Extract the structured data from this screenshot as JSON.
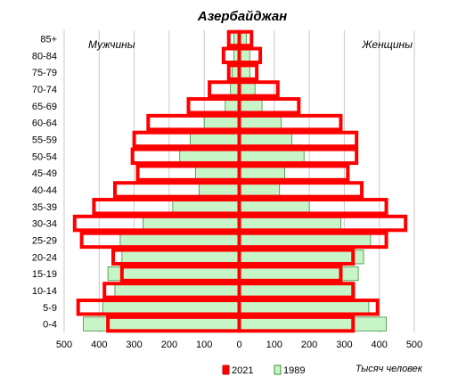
{
  "chart_data": {
    "type": "bar",
    "orientation": "horizontal-pyramid",
    "title": "Азербайджан",
    "left_label": "Мужчины",
    "right_label": "Женщины",
    "unit_label": "Тысяч человек",
    "categories": [
      "0-4",
      "5-9",
      "10-14",
      "15-19",
      "20-24",
      "25-29",
      "30-34",
      "35-39",
      "40-44",
      "45-49",
      "50-54",
      "55-59",
      "60-64",
      "65-69",
      "70-74",
      "75-79",
      "80-84",
      "85+"
    ],
    "xlim": [
      -500,
      500
    ],
    "x_ticks": [
      -500,
      -400,
      -300,
      -200,
      -100,
      0,
      100,
      200,
      300,
      400,
      500
    ],
    "x_tick_labels": [
      "500",
      "400",
      "300",
      "200",
      "100",
      "0",
      "100",
      "200",
      "300",
      "400",
      "500"
    ],
    "grid": true,
    "legend_position": "bottom",
    "series": [
      {
        "name": "2021",
        "style": "outline",
        "color": "#ff0000",
        "male": [
          375,
          460,
          385,
          335,
          360,
          450,
          470,
          415,
          355,
          290,
          305,
          300,
          260,
          145,
          85,
          30,
          45,
          30
        ],
        "female": [
          325,
          395,
          325,
          290,
          325,
          420,
          475,
          420,
          350,
          310,
          335,
          335,
          290,
          170,
          110,
          50,
          60,
          35
        ]
      },
      {
        "name": "1989",
        "style": "filled",
        "color": "#c8f5c8",
        "stroke": "#3c8c3c",
        "male": [
          445,
          390,
          355,
          375,
          335,
          340,
          275,
          190,
          115,
          125,
          170,
          140,
          100,
          40,
          25,
          20,
          15,
          15
        ],
        "female": [
          420,
          370,
          330,
          340,
          355,
          375,
          290,
          200,
          115,
          130,
          185,
          150,
          120,
          65,
          45,
          30,
          30,
          20
        ]
      }
    ]
  },
  "legend": {
    "items": [
      {
        "label": "2021",
        "fill": "#ff0000",
        "stroke": "#d00000"
      },
      {
        "label": "1989",
        "fill": "#c8f5c8",
        "stroke": "#3c8c3c"
      }
    ]
  },
  "colors": {
    "grid": "#c8c8c8",
    "outline": "#ff0000",
    "filled": "#c8f5c8",
    "filled_stroke": "#3c8c3c"
  }
}
